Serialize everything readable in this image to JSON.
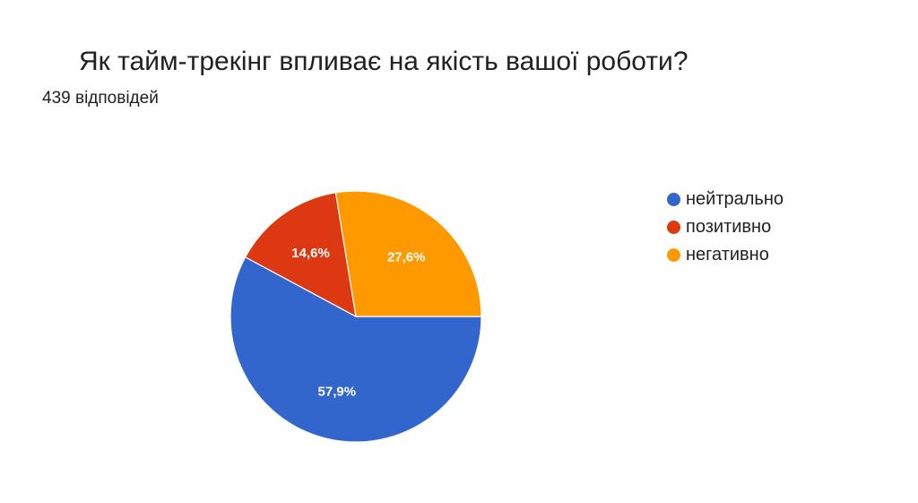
{
  "chart_data": {
    "type": "pie",
    "title": "Як тайм-трекінг впливає на якість вашої роботи?",
    "subtitle": "439 відповідей",
    "categories": [
      "нейтрально",
      "позитивно",
      "негативно"
    ],
    "values": [
      57.9,
      14.6,
      27.6
    ],
    "labels": [
      "57,9%",
      "14,6%",
      "27,6%"
    ],
    "colors": [
      "#3366cc",
      "#dc3912",
      "#ff9900"
    ],
    "legend_position": "right"
  }
}
